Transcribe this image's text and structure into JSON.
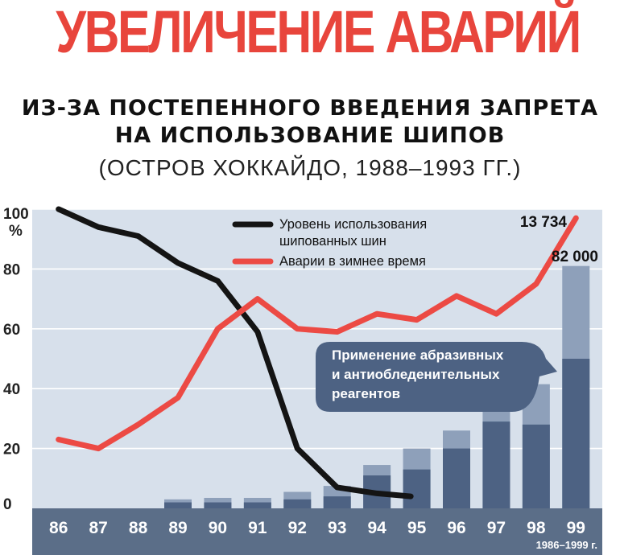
{
  "title": "УВЕЛИЧЕНИЕ АВАРИЙ",
  "subtitle_line1": "ИЗ-ЗА ПОСТЕПЕННОГО ВВЕДЕНИЯ ЗАПРЕТА",
  "subtitle_line2": "НА ИСПОЛЬЗОВАНИЕ ШИПОВ",
  "subtitle_line3": "(ОСТРОВ ХОККАЙДО, 1988–1993 ГГ.)",
  "colors": {
    "title": "#e8453c",
    "plot_background": "#d7e0eb",
    "axis_band": "#5b6e88",
    "studded_line": "#141414",
    "accidents_line": "#ec4a44",
    "bar_dark": "#4d6283",
    "bar_light": "#8ea0ba",
    "callout": "#4d6283"
  },
  "chart_data": {
    "type": "line+bar",
    "x": [
      "86",
      "87",
      "88",
      "89",
      "90",
      "91",
      "92",
      "93",
      "94",
      "95",
      "96",
      "97",
      "98",
      "99"
    ],
    "x_note": "1986–1999 г.",
    "ylim": [
      0,
      100
    ],
    "yticks": [
      {
        "value": 0,
        "label": "0"
      },
      {
        "value": 20,
        "label": "20"
      },
      {
        "value": 40,
        "label": "40"
      },
      {
        "value": 60,
        "label": "60"
      },
      {
        "value": 80,
        "label": "80"
      },
      {
        "value": 100,
        "label": "100"
      }
    ],
    "y_unit": "%",
    "grid": true,
    "legend_position": "top-center",
    "series": [
      {
        "name": "Уровень использования шипованных шин",
        "type": "line",
        "color": "#141414",
        "values": [
          100,
          94,
          91,
          82,
          76,
          59,
          20,
          7,
          5,
          4,
          null,
          null,
          null,
          null
        ]
      },
      {
        "name": "Аварии в зимнее время",
        "type": "line",
        "color": "#ec4a44",
        "values": [
          23,
          20,
          28,
          37,
          60,
          70,
          60,
          59,
          65,
          63,
          71,
          65,
          75,
          97
        ]
      }
    ],
    "bars": {
      "name": "Применение абразивных и антиобледенительных реагентов",
      "dark": [
        null,
        null,
        null,
        2,
        2,
        2,
        3,
        4,
        11,
        13,
        20,
        29,
        28,
        50
      ],
      "total": [
        null,
        null,
        null,
        3,
        3.5,
        3.5,
        5.5,
        7.5,
        14.5,
        20,
        26,
        40,
        41.5,
        81
      ]
    },
    "annotations": [
      {
        "x": "99",
        "series": "Аварии в зимнее время",
        "label": "13 734"
      },
      {
        "x": "99",
        "series": "bars",
        "label": "82 000"
      }
    ]
  }
}
